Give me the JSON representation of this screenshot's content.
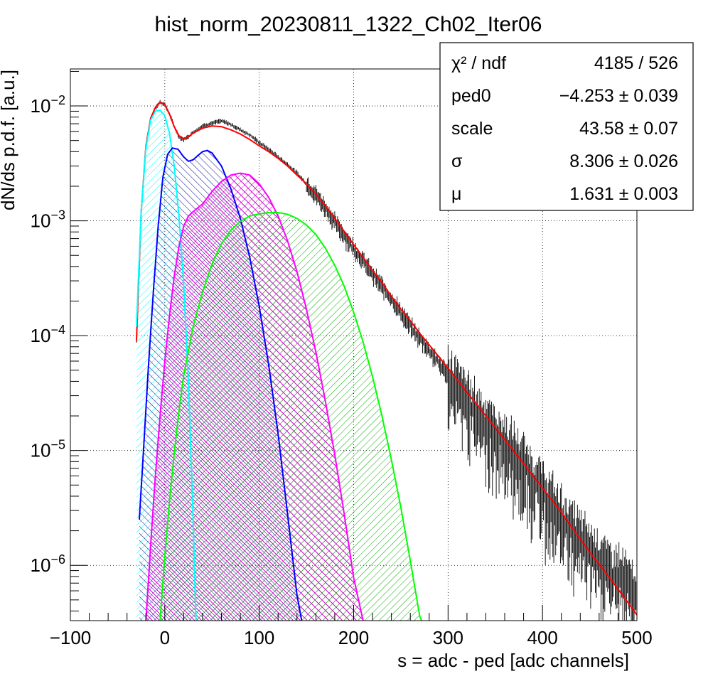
{
  "chart_data": {
    "type": "line",
    "title": "hist_norm_20230811_1322_Ch02_Iter06",
    "xlabel": "s = adc - ped [adc channels]",
    "ylabel": "dN/ds p.d.f. [a.u.]",
    "xlim": [
      -100,
      500
    ],
    "ylim": [
      3.3e-07,
      0.021
    ],
    "yscale": "log",
    "grid": true,
    "x_ticks": [
      {
        "value": -100,
        "label": "−100"
      },
      {
        "value": 0,
        "label": "0"
      },
      {
        "value": 100,
        "label": "100"
      },
      {
        "value": 200,
        "label": "200"
      },
      {
        "value": 300,
        "label": "300"
      },
      {
        "value": 400,
        "label": "400"
      },
      {
        "value": 500,
        "label": "500"
      }
    ],
    "y_ticks": [
      {
        "value": 0.01,
        "base": "10",
        "exp": "−2"
      },
      {
        "value": 0.001,
        "base": "10",
        "exp": "−3"
      },
      {
        "value": 0.0001,
        "base": "10",
        "exp": "−4"
      },
      {
        "value": 1e-05,
        "base": "10",
        "exp": "−5"
      },
      {
        "value": 1e-06,
        "base": "10",
        "exp": "−6"
      }
    ],
    "stats_box": {
      "position": "top-right",
      "rows": [
        {
          "label": "χ² / ndf",
          "value": "4185 / 526"
        },
        {
          "label": "ped0",
          "value": "−4.253 ± 0.039"
        },
        {
          "label": "scale",
          "value": "43.58 ± 0.07"
        },
        {
          "label": "σ",
          "value": "8.306 ± 0.026"
        },
        {
          "label": "μ",
          "value": "1.631 ± 0.003"
        }
      ]
    },
    "series": [
      {
        "kind": "histogram",
        "color": "#000000",
        "points": [
          [
            -30,
            9e-05
          ],
          [
            -25,
            0.0012
          ],
          [
            -20,
            0.0045
          ],
          [
            -15,
            0.0078
          ],
          [
            -10,
            0.0097
          ],
          [
            -5,
            0.0108
          ],
          [
            0,
            0.0103
          ],
          [
            5,
            0.0085
          ],
          [
            10,
            0.0066
          ],
          [
            15,
            0.0054
          ],
          [
            20,
            0.0051
          ],
          [
            25,
            0.0054
          ],
          [
            30,
            0.0059
          ],
          [
            40,
            0.0067
          ],
          [
            50,
            0.0071
          ],
          [
            60,
            0.0074
          ],
          [
            70,
            0.0069
          ],
          [
            80,
            0.0062
          ],
          [
            90,
            0.0056
          ],
          [
            100,
            0.0048
          ],
          [
            110,
            0.0042
          ],
          [
            120,
            0.0036
          ],
          [
            130,
            0.0031
          ],
          [
            140,
            0.0026
          ],
          [
            150,
            0.0021
          ],
          [
            160,
            0.0017
          ],
          [
            170,
            0.0013
          ],
          [
            180,
            0.00098
          ],
          [
            190,
            0.00075
          ],
          [
            200,
            0.00058
          ],
          [
            210,
            0.00045
          ],
          [
            220,
            0.00034
          ],
          [
            230,
            0.00027
          ],
          [
            240,
            0.00021
          ],
          [
            250,
            0.00016
          ],
          [
            260,
            0.00012
          ],
          [
            270,
            9.5e-05
          ],
          [
            280,
            7.5e-05
          ],
          [
            290,
            5.8e-05
          ],
          [
            300,
            4.6e-05
          ],
          [
            310,
            3.6e-05
          ],
          [
            320,
            2.8e-05
          ],
          [
            330,
            2.2e-05
          ],
          [
            340,
            1.8e-05
          ],
          [
            350,
            1.4e-05
          ],
          [
            360,
            1.15e-05
          ],
          [
            370,
            9.5e-06
          ],
          [
            380,
            7.5e-06
          ],
          [
            390,
            5.8e-06
          ],
          [
            400,
            4.5e-06
          ],
          [
            410,
            3.4e-06
          ],
          [
            420,
            2.7e-06
          ],
          [
            430,
            2.1e-06
          ],
          [
            440,
            1.7e-06
          ],
          [
            450,
            1.4e-06
          ],
          [
            460,
            1.2e-06
          ],
          [
            470,
            9e-07
          ],
          [
            480,
            8.5e-07
          ],
          [
            490,
            7e-07
          ],
          [
            500,
            5e-07
          ]
        ]
      },
      {
        "kind": "total-fit",
        "color": "#ff0000",
        "points": [
          [
            -30,
            9e-05
          ],
          [
            -25,
            0.0012
          ],
          [
            -20,
            0.0045
          ],
          [
            -15,
            0.0078
          ],
          [
            -10,
            0.0097
          ],
          [
            -5,
            0.0108
          ],
          [
            0,
            0.0103
          ],
          [
            5,
            0.0085
          ],
          [
            10,
            0.0066
          ],
          [
            15,
            0.0055
          ],
          [
            20,
            0.0052
          ],
          [
            25,
            0.0054
          ],
          [
            30,
            0.0058
          ],
          [
            40,
            0.0064
          ],
          [
            50,
            0.0067
          ],
          [
            60,
            0.0066
          ],
          [
            70,
            0.0062
          ],
          [
            80,
            0.0057
          ],
          [
            90,
            0.0051
          ],
          [
            100,
            0.0045
          ],
          [
            110,
            0.004
          ],
          [
            120,
            0.0035
          ],
          [
            130,
            0.003
          ],
          [
            140,
            0.0025
          ],
          [
            150,
            0.0021
          ],
          [
            160,
            0.0017
          ],
          [
            170,
            0.00135
          ],
          [
            180,
            0.00105
          ],
          [
            190,
            0.00081
          ],
          [
            200,
            0.00062
          ],
          [
            210,
            0.00048
          ],
          [
            220,
            0.00037
          ],
          [
            230,
            0.00029
          ],
          [
            240,
            0.00022
          ],
          [
            250,
            0.00017
          ],
          [
            260,
            0.000135
          ],
          [
            270,
            0.000105
          ],
          [
            280,
            8.3e-05
          ],
          [
            290,
            6.6e-05
          ],
          [
            300,
            5.2e-05
          ],
          [
            310,
            4.1e-05
          ],
          [
            320,
            3.2e-05
          ],
          [
            330,
            2.55e-05
          ],
          [
            340,
            2e-05
          ],
          [
            350,
            1.58e-05
          ],
          [
            360,
            1.24e-05
          ],
          [
            370,
            9.8e-06
          ],
          [
            380,
            7.7e-06
          ],
          [
            390,
            6e-06
          ],
          [
            400,
            4.7e-06
          ],
          [
            410,
            3.7e-06
          ],
          [
            420,
            2.9e-06
          ],
          [
            430,
            2.2e-06
          ],
          [
            440,
            1.7e-06
          ],
          [
            450,
            1.3e-06
          ],
          [
            460,
            1.02e-06
          ],
          [
            470,
            8e-07
          ],
          [
            480,
            6.2e-07
          ],
          [
            490,
            4.8e-07
          ],
          [
            500,
            3.7e-07
          ]
        ]
      },
      {
        "kind": "component",
        "color": "#00ffff",
        "fill": "#00ffff",
        "points": [
          [
            -30,
            0.00012
          ],
          [
            -25,
            0.0012
          ],
          [
            -20,
            0.0043
          ],
          [
            -15,
            0.0075
          ],
          [
            -10,
            0.009
          ],
          [
            -5,
            0.0092
          ],
          [
            0,
            0.0082
          ],
          [
            5,
            0.0058
          ],
          [
            10,
            0.003
          ],
          [
            15,
            0.0011
          ],
          [
            20,
            0.00028
          ],
          [
            25,
            4e-05
          ],
          [
            30,
            2.5e-06
          ],
          [
            33,
            3.3e-07
          ]
        ]
      },
      {
        "kind": "component",
        "color": "#0000ff",
        "fill": "#0000aa",
        "points": [
          [
            -27,
            2.5e-06
          ],
          [
            -22,
            1.2e-05
          ],
          [
            -17,
            6e-05
          ],
          [
            -12,
            0.00025
          ],
          [
            -7,
            0.0009
          ],
          [
            -2,
            0.0024
          ],
          [
            3,
            0.0038
          ],
          [
            8,
            0.0043
          ],
          [
            14,
            0.0042
          ],
          [
            20,
            0.0036
          ],
          [
            25,
            0.0033
          ],
          [
            30,
            0.0034
          ],
          [
            35,
            0.0037
          ],
          [
            40,
            0.004
          ],
          [
            45,
            0.0041
          ],
          [
            50,
            0.0039
          ],
          [
            60,
            0.003
          ],
          [
            70,
            0.0019
          ],
          [
            80,
            0.00105
          ],
          [
            90,
            0.00048
          ],
          [
            100,
            0.00018
          ],
          [
            110,
            5.6e-05
          ],
          [
            120,
            1.4e-05
          ],
          [
            130,
            2.8e-06
          ],
          [
            140,
            5.5e-07
          ],
          [
            145,
            3.3e-07
          ]
        ]
      },
      {
        "kind": "component",
        "color": "#ff00ff",
        "fill": "#cc00cc",
        "points": [
          [
            -20,
            3.3e-07
          ],
          [
            -15,
            1.5e-06
          ],
          [
            -10,
            6e-06
          ],
          [
            -5,
            2e-05
          ],
          [
            0,
            6e-05
          ],
          [
            5,
            0.00015
          ],
          [
            10,
            0.00033
          ],
          [
            15,
            0.0006
          ],
          [
            20,
            0.0009
          ],
          [
            25,
            0.0011
          ],
          [
            30,
            0.0012
          ],
          [
            35,
            0.0013
          ],
          [
            40,
            0.0014
          ],
          [
            50,
            0.0018
          ],
          [
            60,
            0.0022
          ],
          [
            70,
            0.0025
          ],
          [
            80,
            0.0026
          ],
          [
            90,
            0.0025
          ],
          [
            100,
            0.0021
          ],
          [
            110,
            0.0016
          ],
          [
            120,
            0.0011
          ],
          [
            130,
            0.00067
          ],
          [
            140,
            0.00036
          ],
          [
            150,
            0.00017
          ],
          [
            160,
            7.2e-05
          ],
          [
            170,
            2.7e-05
          ],
          [
            180,
            9.2e-06
          ],
          [
            190,
            2.8e-06
          ],
          [
            200,
            7.8e-07
          ],
          [
            210,
            3.3e-07
          ]
        ]
      },
      {
        "kind": "component",
        "color": "#00ff00",
        "fill": "#00aa00",
        "points": [
          [
            -5,
            3.3e-07
          ],
          [
            0,
            1.2e-06
          ],
          [
            5,
            3.6e-06
          ],
          [
            10,
            9.5e-06
          ],
          [
            15,
            2.2e-05
          ],
          [
            20,
            4.5e-05
          ],
          [
            30,
            0.00012
          ],
          [
            40,
            0.00024
          ],
          [
            50,
            0.00042
          ],
          [
            60,
            0.00063
          ],
          [
            70,
            0.00083
          ],
          [
            80,
            0.00099
          ],
          [
            90,
            0.0011
          ],
          [
            100,
            0.00115
          ],
          [
            110,
            0.00118
          ],
          [
            120,
            0.00118
          ],
          [
            130,
            0.00114
          ],
          [
            140,
            0.00105
          ],
          [
            150,
            0.00092
          ],
          [
            160,
            0.00076
          ],
          [
            170,
            0.00058
          ],
          [
            180,
            0.00041
          ],
          [
            190,
            0.00027
          ],
          [
            200,
            0.00016
          ],
          [
            210,
            8.8e-05
          ],
          [
            220,
            4.4e-05
          ],
          [
            230,
            2e-05
          ],
          [
            240,
            8.3e-06
          ],
          [
            250,
            3.2e-06
          ],
          [
            260,
            1.1e-06
          ],
          [
            270,
            3.6e-07
          ],
          [
            272,
            3.3e-07
          ]
        ]
      }
    ]
  }
}
